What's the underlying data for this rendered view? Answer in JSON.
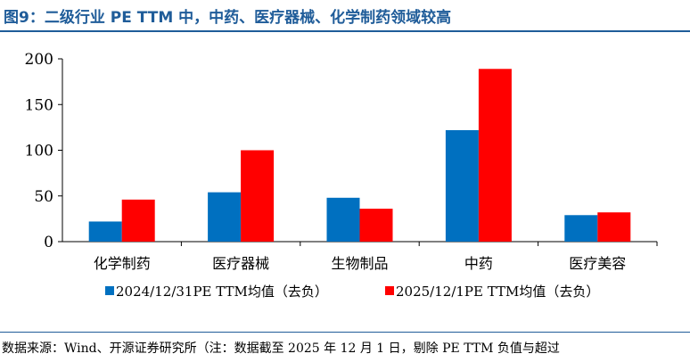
{
  "page": {
    "title": "图9：二级行业 PE TTM 中，中药、医疗器械、化学制药领域较高",
    "source": "数据来源：Wind、开源证券研究所（注：数据截至 2025 年 12 月 1 日，剔除 PE TTM 负值与超过"
  },
  "colors": {
    "title": "#1f5c99",
    "series1": "#0070c0",
    "series2": "#ff0000"
  },
  "chart_data": {
    "type": "bar",
    "categories": [
      "化学制药",
      "医疗器械",
      "生物制品",
      "中药",
      "医疗美容"
    ],
    "series": [
      {
        "name": "2024/12/31PE TTM均值（去负）",
        "values": [
          22,
          54,
          48,
          122,
          29
        ]
      },
      {
        "name": "2025/12/1PE TTM均值（去负）",
        "values": [
          46,
          100,
          36,
          189,
          32
        ]
      }
    ],
    "yticks": [
      "0",
      "50",
      "100",
      "150",
      "200"
    ],
    "ylim": [
      0,
      200
    ],
    "grid": false,
    "legend": "bottom"
  }
}
